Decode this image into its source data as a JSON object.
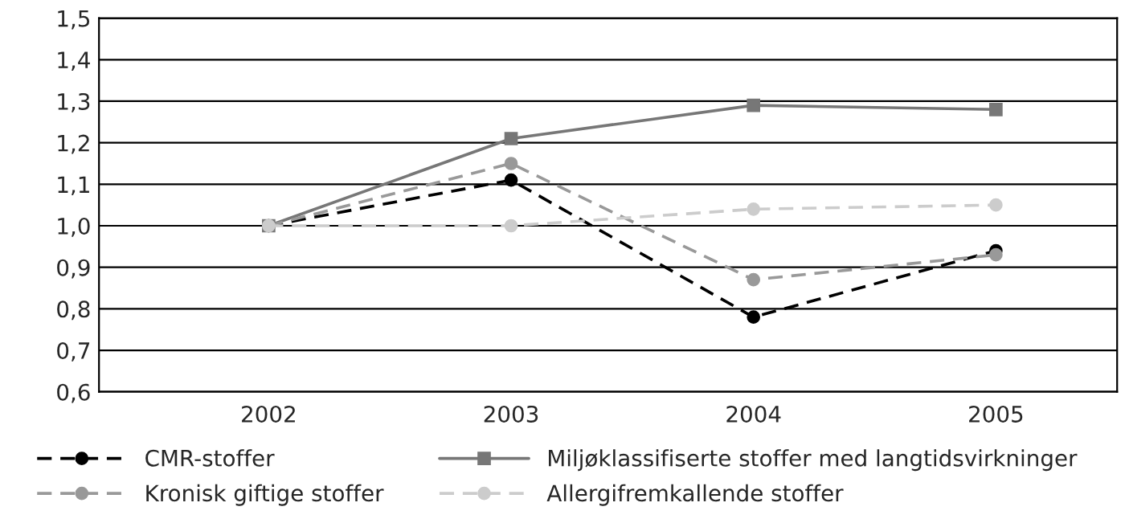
{
  "chart_data": {
    "type": "line",
    "categories": [
      "2002",
      "2003",
      "2004",
      "2005"
    ],
    "series": [
      {
        "name": "CMR-stoffer",
        "color": "#000000",
        "values": [
          1.0,
          1.11,
          0.78,
          0.94
        ],
        "marker": "circle",
        "line_style": "dashed"
      },
      {
        "name": "Miljøklassifiserte stoffer med langtidsvirkninger",
        "color": "#777777",
        "values": [
          1.0,
          1.21,
          1.29,
          1.28
        ],
        "marker": "square",
        "line_style": "solid"
      },
      {
        "name": "Kronisk giftige stoffer",
        "color": "#999999",
        "values": [
          1.0,
          1.15,
          0.87,
          0.93
        ],
        "marker": "circle",
        "line_style": "dashed"
      },
      {
        "name": "Allergifremkallende stoffer",
        "color": "#cccccc",
        "values": [
          1.0,
          1.0,
          1.04,
          1.05
        ],
        "marker": "circle",
        "line_style": "dashed"
      }
    ],
    "ylim": [
      0.6,
      1.5
    ],
    "yticks": [
      {
        "value": 0.6,
        "label": "0,6"
      },
      {
        "value": 0.7,
        "label": "0,7"
      },
      {
        "value": 0.8,
        "label": "0,8"
      },
      {
        "value": 0.9,
        "label": "0,9"
      },
      {
        "value": 1.0,
        "label": "1,0"
      },
      {
        "value": 1.1,
        "label": "1,1"
      },
      {
        "value": 1.2,
        "label": "1,2"
      },
      {
        "value": 1.3,
        "label": "1,3"
      },
      {
        "value": 1.4,
        "label": "1,4"
      },
      {
        "value": 1.5,
        "label": "1,5"
      }
    ],
    "grid": "y",
    "legend": "bottom"
  }
}
